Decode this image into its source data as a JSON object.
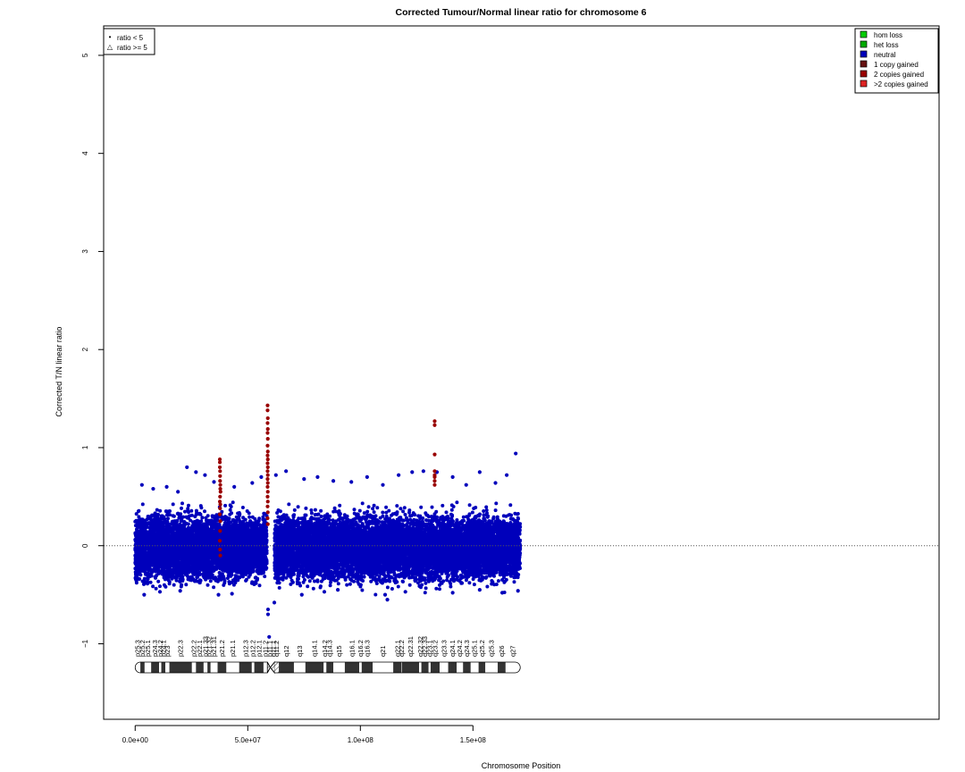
{
  "chart_data": {
    "type": "scatter",
    "title": "Corrected Tumour/Normal linear ratio for chromosome  6",
    "xlabel": "Chromosome Position",
    "ylabel": "Corrected T/N linear ratio",
    "xlim": [
      -14000000,
      357000000
    ],
    "ylim": [
      -1.77,
      5.3
    ],
    "x_ticks": [
      0,
      50000000,
      100000000,
      150000000
    ],
    "x_tick_labels": [
      "0.0e+00",
      "5.0e+07",
      "1.0e+08",
      "1.5e+08"
    ],
    "y_ticks": [
      -1,
      0,
      1,
      2,
      3,
      4,
      5
    ],
    "y_tick_labels": [
      "−1",
      "0",
      "1",
      "2",
      "3",
      "4",
      "5"
    ],
    "reference_line_y": 0,
    "chromosome_length": 171000000,
    "centromere": 60000000,
    "legend_shape": {
      "entries": [
        {
          "marker": "•",
          "label": "ratio < 5"
        },
        {
          "marker": "△",
          "label": "ratio >= 5"
        }
      ]
    },
    "legend_status": {
      "entries": [
        {
          "label": "hom loss",
          "color": "#00cc00"
        },
        {
          "label": "het loss",
          "color": "#00aa00"
        },
        {
          "label": "neutral",
          "color": "#0000bb"
        },
        {
          "label": "1 copy gained",
          "color": "#661111"
        },
        {
          "label": "2 copies gained",
          "color": "#990000"
        },
        {
          "label": ">2 copies gained",
          "color": "#dd2222"
        }
      ]
    },
    "series": [
      {
        "status": "neutral",
        "color": "#0000bb",
        "density_per_1e6bp": 90,
        "segments": [
          [
            0,
            58500000
          ],
          [
            61900000,
            171000000
          ]
        ],
        "y_core_range": [
          -0.34,
          0.38
        ],
        "outliers": [
          [
            3000000,
            0.62
          ],
          [
            8000000,
            0.58
          ],
          [
            14000000,
            0.6
          ],
          [
            19000000,
            0.55
          ],
          [
            23000000,
            0.8
          ],
          [
            27000000,
            0.75
          ],
          [
            31000000,
            0.72
          ],
          [
            35000000,
            0.65
          ],
          [
            44000000,
            0.6
          ],
          [
            52000000,
            0.64
          ],
          [
            56000000,
            0.7
          ],
          [
            62500000,
            0.72
          ],
          [
            67000000,
            0.76
          ],
          [
            75000000,
            0.68
          ],
          [
            81000000,
            0.7
          ],
          [
            88000000,
            0.66
          ],
          [
            96000000,
            0.65
          ],
          [
            103000000,
            0.7
          ],
          [
            110000000,
            0.62
          ],
          [
            117000000,
            0.72
          ],
          [
            123000000,
            0.75
          ],
          [
            128000000,
            0.76
          ],
          [
            134000000,
            0.75
          ],
          [
            141000000,
            0.7
          ],
          [
            147000000,
            0.62
          ],
          [
            153000000,
            0.75
          ],
          [
            160000000,
            0.64
          ],
          [
            165000000,
            0.72
          ],
          [
            169000000,
            0.94
          ],
          [
            4000000,
            -0.5
          ],
          [
            11000000,
            -0.47
          ],
          [
            20000000,
            -0.46
          ],
          [
            37000000,
            -0.5
          ],
          [
            43000000,
            -0.49
          ],
          [
            59000000,
            -0.65
          ],
          [
            59000000,
            -0.7
          ],
          [
            59500000,
            -0.93
          ],
          [
            61800000,
            -0.58
          ],
          [
            74000000,
            -0.5
          ],
          [
            84000000,
            -0.47
          ],
          [
            90000000,
            -0.45
          ],
          [
            111000000,
            -0.5
          ],
          [
            112000000,
            -0.55
          ],
          [
            120000000,
            -0.47
          ],
          [
            141000000,
            -0.48
          ],
          [
            153000000,
            -0.45
          ],
          [
            163000000,
            -0.48
          ],
          [
            170000000,
            -0.46
          ]
        ]
      },
      {
        "status": "2 copies gained",
        "color": "#990000",
        "points": [
          [
            37600000,
            0.88
          ],
          [
            37600000,
            0.85
          ],
          [
            37600000,
            0.8
          ],
          [
            37700000,
            0.76
          ],
          [
            37700000,
            0.71
          ],
          [
            37700000,
            0.66
          ],
          [
            37800000,
            0.62
          ],
          [
            37800000,
            0.58
          ],
          [
            37900000,
            0.55
          ],
          [
            37700000,
            0.5
          ],
          [
            37600000,
            0.45
          ],
          [
            37800000,
            0.42
          ],
          [
            37700000,
            0.38
          ],
          [
            37600000,
            0.32
          ],
          [
            37800000,
            0.25
          ],
          [
            37700000,
            0.15
          ],
          [
            37600000,
            0.05
          ],
          [
            37700000,
            -0.04
          ],
          [
            37800000,
            -0.1
          ],
          [
            58800000,
            1.43
          ],
          [
            58800000,
            1.38
          ],
          [
            58900000,
            1.3
          ],
          [
            58800000,
            1.25
          ],
          [
            58900000,
            1.19
          ],
          [
            58800000,
            1.15
          ],
          [
            58900000,
            1.09
          ],
          [
            58800000,
            1.02
          ],
          [
            58900000,
            0.96
          ],
          [
            58800000,
            0.92
          ],
          [
            58900000,
            0.88
          ],
          [
            58800000,
            0.84
          ],
          [
            58900000,
            0.8
          ],
          [
            58800000,
            0.76
          ],
          [
            58900000,
            0.72
          ],
          [
            58800000,
            0.68
          ],
          [
            58900000,
            0.64
          ],
          [
            58800000,
            0.6
          ],
          [
            58900000,
            0.55
          ],
          [
            58800000,
            0.5
          ],
          [
            58900000,
            0.45
          ],
          [
            58800000,
            0.4
          ],
          [
            58900000,
            0.34
          ],
          [
            58800000,
            0.28
          ],
          [
            58900000,
            0.22
          ],
          [
            133000000,
            1.27
          ],
          [
            133000000,
            1.23
          ],
          [
            133000000,
            0.93
          ],
          [
            133000000,
            0.76
          ],
          [
            133000000,
            0.72
          ],
          [
            133000000,
            0.7
          ],
          [
            133000000,
            0.66
          ],
          [
            133000000,
            0.62
          ]
        ]
      }
    ],
    "ideogram": {
      "bands": [
        {
          "name": "p25.3",
          "start": 0,
          "end": 2300000,
          "stain": "gneg"
        },
        {
          "name": "p25.2",
          "start": 2300000,
          "end": 4200000,
          "stain": "gpos50"
        },
        {
          "name": "p25.1",
          "start": 4200000,
          "end": 7100000,
          "stain": "gneg"
        },
        {
          "name": "p24.3",
          "start": 7100000,
          "end": 10600000,
          "stain": "gpos75"
        },
        {
          "name": "p24.2",
          "start": 10600000,
          "end": 11600000,
          "stain": "gneg"
        },
        {
          "name": "p24.1",
          "start": 11600000,
          "end": 13400000,
          "stain": "gpos25"
        },
        {
          "name": "p23",
          "start": 13400000,
          "end": 15200000,
          "stain": "gneg"
        },
        {
          "name": "p22.3",
          "start": 15200000,
          "end": 25200000,
          "stain": "gpos75"
        },
        {
          "name": "p22.2",
          "start": 25200000,
          "end": 27000000,
          "stain": "gneg"
        },
        {
          "name": "p22.1",
          "start": 27000000,
          "end": 30400000,
          "stain": "gpos50"
        },
        {
          "name": "p21.33",
          "start": 30400000,
          "end": 32100000,
          "stain": "gneg"
        },
        {
          "name": "p21.32",
          "start": 32100000,
          "end": 33500000,
          "stain": "gpos25"
        },
        {
          "name": "p21.31",
          "start": 33500000,
          "end": 36600000,
          "stain": "gneg"
        },
        {
          "name": "p21.2",
          "start": 36600000,
          "end": 40500000,
          "stain": "gpos25"
        },
        {
          "name": "p21.1",
          "start": 40500000,
          "end": 46200000,
          "stain": "gneg"
        },
        {
          "name": "p12.3",
          "start": 46200000,
          "end": 51800000,
          "stain": "gpos100"
        },
        {
          "name": "p12.2",
          "start": 51800000,
          "end": 52900000,
          "stain": "gneg"
        },
        {
          "name": "p12.1",
          "start": 52900000,
          "end": 57000000,
          "stain": "gpos100"
        },
        {
          "name": "p11.2",
          "start": 57000000,
          "end": 58700000,
          "stain": "gneg"
        },
        {
          "name": "p11.1",
          "start": 58700000,
          "end": 61000000,
          "stain": "acen"
        },
        {
          "name": "q11.1",
          "start": 61000000,
          "end": 61900000,
          "stain": "acen"
        },
        {
          "name": "q11.2",
          "start": 61900000,
          "end": 63800000,
          "stain": "gvar"
        },
        {
          "name": "q12",
          "start": 63800000,
          "end": 70500000,
          "stain": "gpos100"
        },
        {
          "name": "q13",
          "start": 70500000,
          "end": 75600000,
          "stain": "gneg"
        },
        {
          "name": "q14.1",
          "start": 75600000,
          "end": 83700000,
          "stain": "gpos50"
        },
        {
          "name": "q14.2",
          "start": 83700000,
          "end": 84900000,
          "stain": "gneg"
        },
        {
          "name": "q14.3",
          "start": 84900000,
          "end": 88000000,
          "stain": "gpos50"
        },
        {
          "name": "q15",
          "start": 88000000,
          "end": 93100000,
          "stain": "gneg"
        },
        {
          "name": "q16.1",
          "start": 93100000,
          "end": 99500000,
          "stain": "gpos100"
        },
        {
          "name": "q16.2",
          "start": 99500000,
          "end": 100600000,
          "stain": "gneg"
        },
        {
          "name": "q16.3",
          "start": 100600000,
          "end": 105500000,
          "stain": "gpos100"
        },
        {
          "name": "q21",
          "start": 105500000,
          "end": 114600000,
          "stain": "gneg"
        },
        {
          "name": "q22.1",
          "start": 114600000,
          "end": 118300000,
          "stain": "gpos75"
        },
        {
          "name": "q22.2",
          "start": 118300000,
          "end": 118500000,
          "stain": "gneg"
        },
        {
          "name": "q22.31",
          "start": 118500000,
          "end": 126100000,
          "stain": "gpos100"
        },
        {
          "name": "q22.32",
          "start": 126100000,
          "end": 127100000,
          "stain": "gneg"
        },
        {
          "name": "q22.33",
          "start": 127100000,
          "end": 130300000,
          "stain": "gpos75"
        },
        {
          "name": "q23.1",
          "start": 130300000,
          "end": 131200000,
          "stain": "gneg"
        },
        {
          "name": "q23.2",
          "start": 131200000,
          "end": 135200000,
          "stain": "gpos50"
        },
        {
          "name": "q23.3",
          "start": 135200000,
          "end": 139000000,
          "stain": "gneg"
        },
        {
          "name": "q24.1",
          "start": 139000000,
          "end": 142800000,
          "stain": "gpos75"
        },
        {
          "name": "q24.2",
          "start": 142800000,
          "end": 145600000,
          "stain": "gneg"
        },
        {
          "name": "q24.3",
          "start": 145600000,
          "end": 149000000,
          "stain": "gpos75"
        },
        {
          "name": "q25.1",
          "start": 149000000,
          "end": 152500000,
          "stain": "gneg"
        },
        {
          "name": "q25.2",
          "start": 152500000,
          "end": 155500000,
          "stain": "gpos50"
        },
        {
          "name": "q25.3",
          "start": 155500000,
          "end": 161000000,
          "stain": "gneg"
        },
        {
          "name": "q26",
          "start": 161000000,
          "end": 164500000,
          "stain": "gpos50"
        },
        {
          "name": "q27",
          "start": 164500000,
          "end": 171000000,
          "stain": "gneg"
        }
      ]
    }
  }
}
